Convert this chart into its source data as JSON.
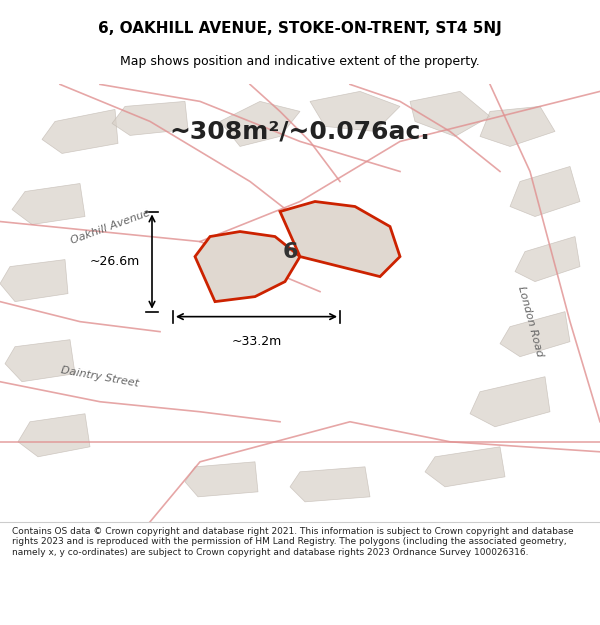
{
  "title": "6, OAKHILL AVENUE, STOKE-ON-TRENT, ST4 5NJ",
  "subtitle": "Map shows position and indicative extent of the property.",
  "area_text": "~308m²/~0.076ac.",
  "width_label": "~33.2m",
  "height_label": "~26.6m",
  "property_number": "6",
  "footer": "Contains OS data © Crown copyright and database right 2021. This information is subject to Crown copyright and database rights 2023 and is reproduced with the permission of HM Land Registry. The polygons (including the associated geometry, namely x, y co-ordinates) are subject to Crown copyright and database rights 2023 Ordnance Survey 100026316.",
  "bg_color": "#f0ede8",
  "map_bg": "#f0ede8",
  "property_fill": "#e8e0d8",
  "property_edge": "#cc2200",
  "street_color": "#e8b8b0",
  "building_fill": "#d8d0c8",
  "building_edge": "#b8b0a8",
  "footer_bg": "#ffffff",
  "title_bg": "#ffffff",
  "map_area_bg": "#e8e4de"
}
